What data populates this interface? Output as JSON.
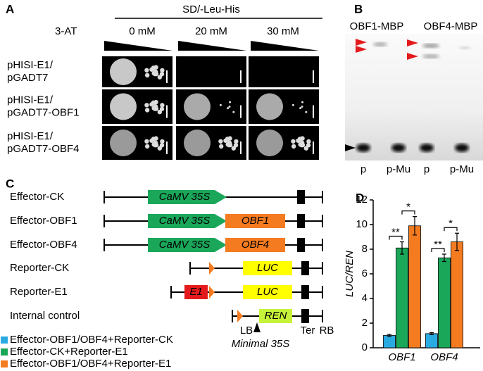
{
  "panel_a": {
    "label": "A",
    "header": "SD/-Leu-His",
    "reagent": "3-AT",
    "concentrations": [
      "0 mM",
      "20 mM",
      "30 mM"
    ],
    "rows": [
      [
        "pHISI-E1/",
        "pGADT7"
      ],
      [
        "pHISI-E1/",
        "pGADT7-OBF1"
      ],
      [
        "pHISI-E1/",
        "pGADT7-OBF4"
      ]
    ]
  },
  "panel_b": {
    "label": "B",
    "proteins": [
      "OBF1-MBP",
      "OBF4-MBP"
    ],
    "lanes": [
      "p",
      "p-Mu",
      "p",
      "p-Mu"
    ]
  },
  "panel_c": {
    "label": "C",
    "constructs": [
      {
        "name": "Effector-CK",
        "parts": [
          "CaMV 35S"
        ]
      },
      {
        "name": "Effector-OBF1",
        "parts": [
          "CaMV 35S",
          "OBF1"
        ]
      },
      {
        "name": "Effector-OBF4",
        "parts": [
          "CaMV 35S",
          "OBF4"
        ]
      },
      {
        "name": "Reporter-CK",
        "parts": [
          "LUC"
        ]
      },
      {
        "name": "Reporter-E1",
        "parts": [
          "E1",
          "LUC"
        ]
      },
      {
        "name": "Internal control",
        "parts": [
          "REN"
        ]
      }
    ],
    "markers": [
      "LB",
      "Minimal 35S",
      "Ter",
      "RB"
    ]
  },
  "chart_data": {
    "type": "bar",
    "label": "D",
    "ylabel": "LUC/REN",
    "categories": [
      "OBF1",
      "OBF4"
    ],
    "series": [
      {
        "name": "Effector-OBF1/OBF4+Reporter-CK",
        "color": "#29abe2",
        "values": [
          1.0,
          1.15
        ],
        "errors": [
          0.08,
          0.08
        ]
      },
      {
        "name": "Effector-CK+Reporter-E1",
        "color": "#1aa75a",
        "values": [
          8.1,
          7.3
        ],
        "errors": [
          0.5,
          0.3
        ]
      },
      {
        "name": "Effector-OBF1/OBF4+Reporter-E1",
        "color": "#f47b20",
        "values": [
          9.9,
          8.6
        ],
        "errors": [
          0.75,
          0.7
        ]
      }
    ],
    "ylim": [
      0,
      12
    ],
    "yticks": [
      0,
      2,
      4,
      6,
      8,
      10,
      12
    ],
    "annotations": [
      "**",
      "*",
      "**",
      "*"
    ]
  }
}
